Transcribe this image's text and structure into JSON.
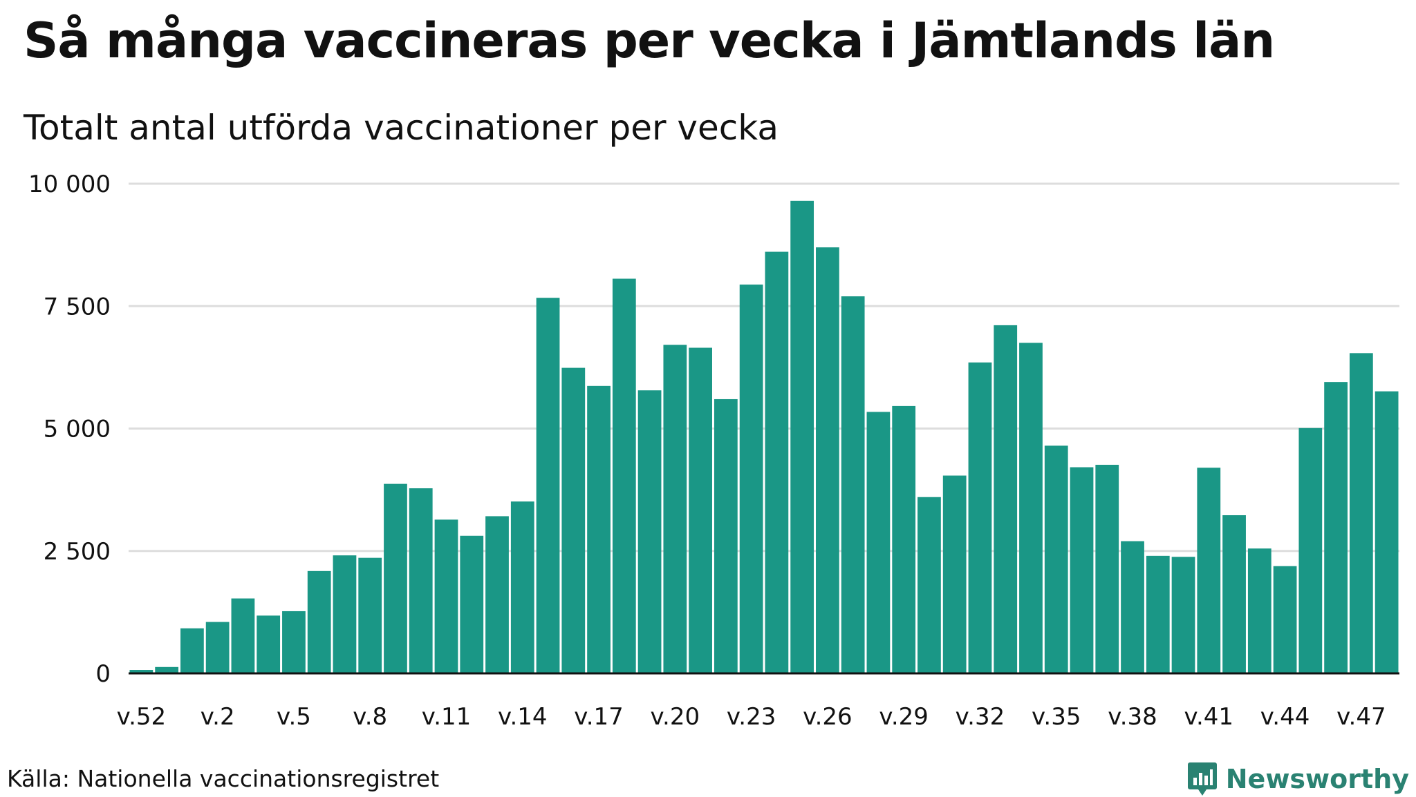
{
  "title": "Så många vaccineras per vecka i Jämtlands län",
  "subtitle": "Totalt antal utförda vaccinationer per vecka",
  "source": "Källa: Nationella vaccinationsregistret",
  "brand": {
    "name": "Newsworthy",
    "icon": "newsworthy-logo-icon",
    "color": "#2a8272"
  },
  "colors": {
    "bar": "#1a9786",
    "grid": "#dddddd",
    "axis": "#111111"
  },
  "chart_data": {
    "type": "bar",
    "categories": [
      "v.52",
      "v.53",
      "v.1",
      "v.2",
      "v.3",
      "v.4",
      "v.5",
      "v.6",
      "v.7",
      "v.8",
      "v.9",
      "v.10",
      "v.11",
      "v.12",
      "v.13",
      "v.14",
      "v.15",
      "v.16",
      "v.17",
      "v.18",
      "v.19",
      "v.20",
      "v.21",
      "v.22",
      "v.23",
      "v.24",
      "v.25",
      "v.26",
      "v.27",
      "v.28",
      "v.29",
      "v.30",
      "v.31",
      "v.32",
      "v.33",
      "v.34",
      "v.35",
      "v.36",
      "v.37",
      "v.38",
      "v.39",
      "v.40",
      "v.41",
      "v.42",
      "v.43",
      "v.44",
      "v.45",
      "v.46",
      "v.47",
      "v.48"
    ],
    "values": [
      70,
      130,
      920,
      1050,
      1530,
      1180,
      1270,
      2090,
      2410,
      2360,
      3870,
      3780,
      3140,
      2810,
      3210,
      3510,
      7670,
      6240,
      5870,
      8060,
      5780,
      6710,
      6650,
      5600,
      7940,
      8610,
      9650,
      8700,
      7700,
      5340,
      5460,
      3600,
      4040,
      6350,
      7110,
      6750,
      4650,
      4210,
      4260,
      2700,
      2400,
      2380,
      4200,
      3230,
      2550,
      2190,
      5010,
      5950,
      6540,
      5760
    ],
    "x_tick_labels": [
      "v.52",
      "v.2",
      "v.5",
      "v.8",
      "v.11",
      "v.14",
      "v.17",
      "v.20",
      "v.23",
      "v.26",
      "v.29",
      "v.32",
      "v.35",
      "v.38",
      "v.41",
      "v.44",
      "v.47"
    ],
    "y_ticks": [
      0,
      2500,
      5000,
      7500,
      10000
    ],
    "y_tick_labels": [
      "0",
      "2 500",
      "5 000",
      "7 500",
      "10 000"
    ],
    "ylim": [
      0,
      10000
    ],
    "xlabel": "",
    "ylabel": "",
    "grid": true,
    "legend": false
  }
}
